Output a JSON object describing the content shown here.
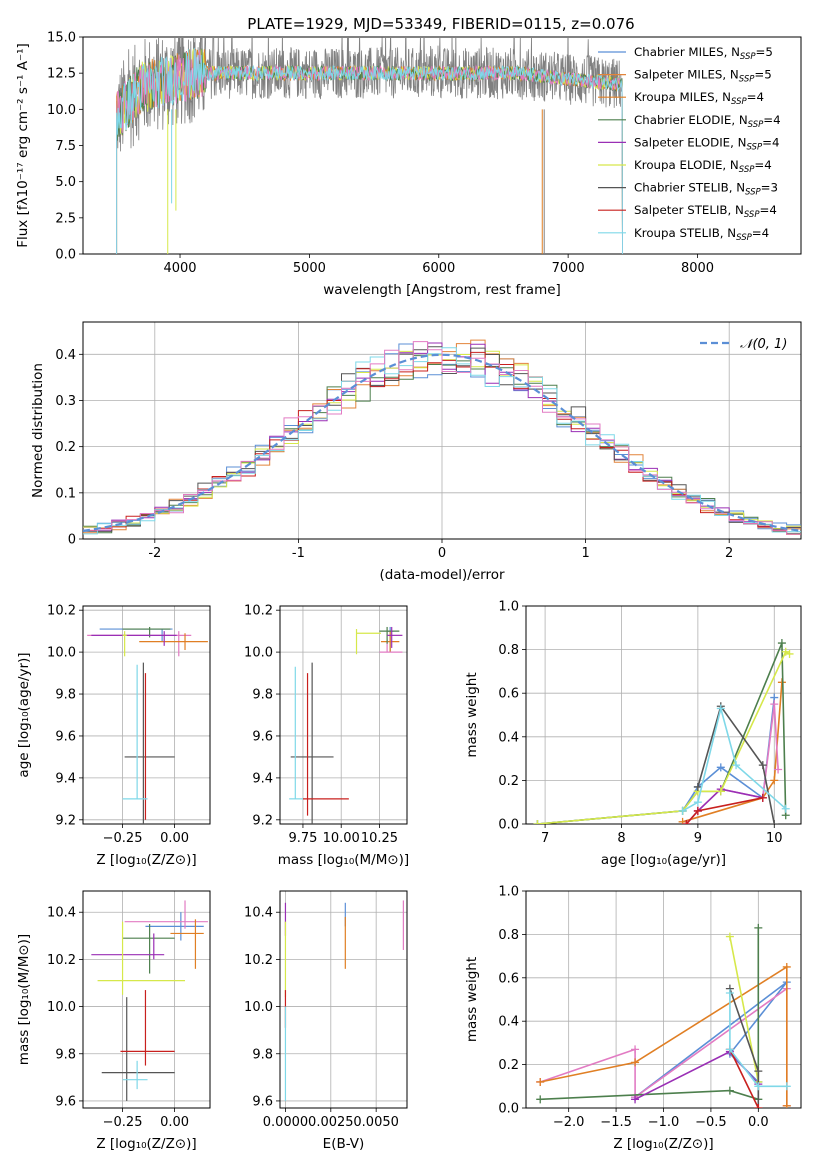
{
  "figure_title": "PLATE=1929, MJD=53349, FIBERID=0115, z=0.076",
  "colors": {
    "Chabrier MILES": "#5B8FD6",
    "Salpeter MILES": "#E2843A",
    "Kroupa MILES": "#E07F24",
    "Chabrier ELODIE": "#4D7F4D",
    "Salpeter ELODIE": "#9A2FB5",
    "Kroupa ELODIE": "#D6E84A",
    "Chabrier STELIB": "#555555",
    "Salpeter STELIB": "#C8201E",
    "Kroupa STELIB": "#7FD8E8",
    "pink": "#E27BC3",
    "gaussian": "#5B8FD6"
  },
  "chart_data": [
    {
      "id": "spectrum",
      "type": "line",
      "xlabel": "wavelength [Angstrom, rest frame]",
      "ylabel": "Flux [fλ10⁻¹⁷ erg cm⁻² s⁻¹ A⁻¹]",
      "xlim": [
        3250,
        8800
      ],
      "ylim": [
        0,
        15
      ],
      "xticks": [
        "4000",
        "5000",
        "6000",
        "7000",
        "8000"
      ],
      "yticks": [
        "0.0",
        "2.5",
        "5.0",
        "7.5",
        "10.0",
        "12.5",
        "15.0"
      ],
      "data_range": [
        3510,
        7420
      ],
      "legend_position": "upper right",
      "legend": [
        {
          "label": "Chabrier MILES, N",
          "sub": "SSP",
          "value": "=5",
          "color": "#5B8FD6"
        },
        {
          "label": "Salpeter MILES, N",
          "sub": "SSP",
          "value": "=5",
          "color": "#E2843A"
        },
        {
          "label": "Kroupa MILES, N",
          "sub": "SSP",
          "value": "=4",
          "color": "#E07F24"
        },
        {
          "label": "Chabrier ELODIE, N",
          "sub": "SSP",
          "value": "=4",
          "color": "#4D7F4D"
        },
        {
          "label": "Salpeter ELODIE, N",
          "sub": "SSP",
          "value": "=4",
          "color": "#9A2FB5"
        },
        {
          "label": "Kroupa ELODIE, N",
          "sub": "SSP",
          "value": "=4",
          "color": "#D6E84A"
        },
        {
          "label": "Chabrier STELIB, N",
          "sub": "SSP",
          "value": "=3",
          "color": "#555555"
        },
        {
          "label": "Salpeter STELIB, N",
          "sub": "SSP",
          "value": "=4",
          "color": "#C8201E"
        },
        {
          "label": "Kroupa STELIB, N",
          "sub": "SSP",
          "value": "=4",
          "color": "#7FD8E8"
        }
      ]
    },
    {
      "id": "residuals",
      "type": "histogram",
      "xlabel": "(data-model)/error",
      "ylabel": "Normed distribution",
      "xlim": [
        -2.5,
        2.5
      ],
      "ylim": [
        0,
        0.47
      ],
      "xticks": [
        -2,
        -1,
        0,
        1,
        2
      ],
      "yticks": [
        0.0,
        0.1,
        0.2,
        0.3,
        0.4
      ],
      "grid": true,
      "legend_position": "upper right",
      "legend": [
        {
          "label": "𝒩(0, 1)",
          "style": "dashed",
          "color": "#5B8FD6"
        }
      ],
      "bin_width": 0.1,
      "bin_start": -2.5
    },
    {
      "id": "age_vs_Z",
      "type": "errorbar",
      "xlabel": "Z [log₁₀(Z/Z⊙)]",
      "ylabel": "age  [log₁₀(age/yr)]",
      "xlim": [
        -0.44,
        0.17
      ],
      "ylim": [
        9.18,
        10.22
      ],
      "xticks": [
        "−0.25",
        "0.00"
      ],
      "yticks": [
        "9.2",
        "9.4",
        "9.6",
        "9.8",
        "10.0",
        "10.2"
      ],
      "grid": true,
      "points": [
        {
          "x": -0.06,
          "y": 10.11,
          "xerr": [
            0.3,
            0.05
          ],
          "yerr": [
            0.06,
            0.0
          ],
          "color": "#5B8FD6"
        },
        {
          "x": 0.02,
          "y": 10.08,
          "xerr": [
            0.44,
            0.06
          ],
          "yerr": [
            0.1,
            0.02
          ],
          "color": "#E27BC3"
        },
        {
          "x": 0.05,
          "y": 10.05,
          "xerr": [
            0.22,
            0.11
          ],
          "yerr": [
            0.04,
            0.04
          ],
          "color": "#E07F24"
        },
        {
          "x": -0.12,
          "y": 10.11,
          "xerr": [
            0.13,
            0.1
          ],
          "yerr": [
            0.04,
            0.01
          ],
          "color": "#4D7F4D"
        },
        {
          "x": -0.05,
          "y": 10.08,
          "xerr": [
            0.35,
            0.06
          ],
          "yerr": [
            0.05,
            0.02
          ],
          "color": "#9A2FB5"
        },
        {
          "x": -0.24,
          "y": 10.08,
          "xerr": [
            0.01,
            0.01
          ],
          "yerr": [
            0.1,
            0.02
          ],
          "color": "#D6E84A"
        },
        {
          "x": -0.15,
          "y": 9.5,
          "xerr": [
            0.09,
            0.15
          ],
          "yerr": [
            0.45,
            0.45
          ],
          "color": "#555555"
        },
        {
          "x": -0.14,
          "y": 9.28,
          "xerr": [
            0.0,
            0.0
          ],
          "yerr": [
            0.08,
            0.62
          ],
          "color": "#C8201E"
        },
        {
          "x": -0.18,
          "y": 9.3,
          "xerr": [
            0.07,
            0.05
          ],
          "yerr": [
            0.0,
            0.64
          ],
          "color": "#7FD8E8"
        }
      ]
    },
    {
      "id": "age_vs_mass",
      "type": "errorbar",
      "xlabel": "mass [log₁₀(M/M⊙)]",
      "ylabel": "",
      "xlim": [
        9.6,
        10.43
      ],
      "ylim": [
        9.18,
        10.22
      ],
      "xticks": [
        "9.75",
        "10.00",
        "10.25"
      ],
      "yticks": [
        "9.2",
        "9.4",
        "9.6",
        "9.8",
        "10.0",
        "10.2"
      ],
      "grid": true,
      "points": [
        {
          "x": 10.32,
          "y": 10.1,
          "xerr": [
            0.02,
            0.02
          ],
          "yerr": [
            0.1,
            0.02
          ],
          "color": "#5B8FD6"
        },
        {
          "x": 10.32,
          "y": 10.05,
          "xerr": [
            0.06,
            0.06
          ],
          "yerr": [
            0.05,
            0.05
          ],
          "color": "#E07F24"
        },
        {
          "x": 10.3,
          "y": 10.0,
          "xerr": [
            0.05,
            0.1
          ],
          "yerr": [
            0.0,
            0.06
          ],
          "color": "#E27BC3"
        },
        {
          "x": 10.3,
          "y": 10.1,
          "xerr": [
            0.05,
            0.08
          ],
          "yerr": [
            0.06,
            0.02
          ],
          "color": "#4D7F4D"
        },
        {
          "x": 10.33,
          "y": 10.08,
          "xerr": [
            0.03,
            0.07
          ],
          "yerr": [
            0.06,
            0.04
          ],
          "color": "#9A2FB5"
        },
        {
          "x": 10.1,
          "y": 10.09,
          "xerr": [
            0.0,
            0.16
          ],
          "yerr": [
            0.1,
            0.02
          ],
          "color": "#D6E84A"
        },
        {
          "x": 9.81,
          "y": 9.5,
          "xerr": [
            0.14,
            0.14
          ],
          "yerr": [
            0.45,
            0.45
          ],
          "color": "#555555"
        },
        {
          "x": 9.78,
          "y": 9.3,
          "xerr": [
            0.03,
            0.27
          ],
          "yerr": [
            0.08,
            0.6
          ],
          "color": "#C8201E"
        },
        {
          "x": 9.7,
          "y": 9.3,
          "xerr": [
            0.04,
            0.05
          ],
          "yerr": [
            0.0,
            0.63
          ],
          "color": "#7FD8E8"
        }
      ]
    },
    {
      "id": "massweight_vs_age",
      "type": "line",
      "xlabel": "age  [log₁₀(age/yr)]",
      "ylabel": "mass weight",
      "xlim": [
        6.75,
        10.35
      ],
      "ylim": [
        0,
        1.0
      ],
      "xticks": [
        7,
        8,
        9,
        10
      ],
      "yticks": [
        "0.0",
        "0.2",
        "0.4",
        "0.6",
        "0.8",
        "1.0"
      ],
      "grid": true,
      "series": [
        {
          "color": "#5B8FD6",
          "x": [
            6.9,
            8.8,
            9.0,
            9.3,
            9.85,
            10.0
          ],
          "y": [
            0.0,
            0.06,
            0.17,
            0.26,
            0.12,
            0.58
          ]
        },
        {
          "color": "#E07F24",
          "x": [
            8.8,
            9.85,
            10.0,
            10.1
          ],
          "y": [
            0.01,
            0.12,
            0.2,
            0.65
          ]
        },
        {
          "color": "#E27BC3",
          "x": [
            8.85,
            9.0,
            9.3,
            9.85,
            10.0,
            10.05
          ],
          "y": [
            0.0,
            0.06,
            0.16,
            0.12,
            0.55,
            0.25
          ]
        },
        {
          "color": "#4D7F4D",
          "x": [
            6.9,
            8.8,
            9.0,
            9.3,
            10.1,
            10.15
          ],
          "y": [
            0.0,
            0.06,
            0.15,
            0.15,
            0.83,
            0.04
          ]
        },
        {
          "color": "#9A2FB5",
          "x": [
            8.85,
            9.0,
            9.3,
            9.85
          ],
          "y": [
            0.0,
            0.06,
            0.16,
            0.12
          ]
        },
        {
          "color": "#D6E84A",
          "x": [
            6.9,
            8.8,
            9.0,
            9.3,
            10.15,
            10.2
          ],
          "y": [
            0.0,
            0.06,
            0.15,
            0.15,
            0.79,
            0.78
          ]
        },
        {
          "color": "#555555",
          "x": [
            9.0,
            9.3,
            9.85,
            10.0
          ],
          "y": [
            0.17,
            0.54,
            0.27,
            0.0
          ]
        },
        {
          "color": "#C8201E",
          "x": [
            8.85,
            9.0,
            9.85
          ],
          "y": [
            0.0,
            0.06,
            0.12
          ]
        },
        {
          "color": "#7FD8E8",
          "x": [
            8.8,
            9.0,
            9.3,
            9.5,
            10.15
          ],
          "y": [
            0.06,
            0.1,
            0.53,
            0.27,
            0.07
          ]
        }
      ]
    },
    {
      "id": "mass_vs_Z",
      "type": "errorbar",
      "xlabel": "Z [log₁₀(Z/Z⊙)]",
      "ylabel": "mass [log₁₀(M/M⊙)]",
      "xlim": [
        -0.44,
        0.17
      ],
      "ylim": [
        9.57,
        10.49
      ],
      "xticks": [
        "−0.25",
        "0.00"
      ],
      "yticks": [
        "9.6",
        "9.8",
        "10.0",
        "10.2",
        "10.4"
      ],
      "grid": true,
      "points": [
        {
          "x": 0.03,
          "y": 10.34,
          "xerr": [
            0.17,
            0.11
          ],
          "yerr": [
            0.06,
            0.06
          ],
          "color": "#5B8FD6"
        },
        {
          "x": 0.05,
          "y": 10.36,
          "xerr": [
            0.29,
            0.11
          ],
          "yerr": [
            0.03,
            0.09
          ],
          "color": "#E27BC3"
        },
        {
          "x": 0.1,
          "y": 10.31,
          "xerr": [
            0.12,
            0.04
          ],
          "yerr": [
            0.15,
            0.06
          ],
          "color": "#E07F24"
        },
        {
          "x": -0.12,
          "y": 10.29,
          "xerr": [
            0.13,
            0.12
          ],
          "yerr": [
            0.15,
            0.06
          ],
          "color": "#4D7F4D"
        },
        {
          "x": -0.1,
          "y": 10.22,
          "xerr": [
            0.3,
            0.05
          ],
          "yerr": [
            0.02,
            0.09
          ],
          "color": "#9A2FB5"
        },
        {
          "x": -0.25,
          "y": 10.11,
          "xerr": [
            0.12,
            0.3
          ],
          "yerr": [
            0.06,
            0.25
          ],
          "color": "#D6E84A"
        },
        {
          "x": -0.23,
          "y": 9.72,
          "xerr": [
            0.12,
            0.23
          ],
          "yerr": [
            0.12,
            0.32
          ],
          "color": "#555555"
        },
        {
          "x": -0.14,
          "y": 9.81,
          "xerr": [
            0.12,
            0.14
          ],
          "yerr": [
            0.06,
            0.26
          ],
          "color": "#C8201E"
        },
        {
          "x": -0.18,
          "y": 9.69,
          "xerr": [
            0.07,
            0.05
          ],
          "yerr": [
            0.04,
            0.08
          ],
          "color": "#7FD8E8"
        }
      ]
    },
    {
      "id": "mass_vs_ebv",
      "type": "errorbar",
      "xlabel": "E(B-V)",
      "ylabel": "",
      "xlim": [
        -0.0003,
        0.0067
      ],
      "ylim": [
        9.57,
        10.49
      ],
      "xticks": [
        "0.0000",
        "0.0025",
        "0.0050"
      ],
      "yticks": [
        "9.6",
        "9.8",
        "10.0",
        "10.2",
        "10.4"
      ],
      "grid": true,
      "points": [
        {
          "x": 0.0033,
          "y": 10.38,
          "xerr": [
            0,
            0
          ],
          "yerr": [
            0.04,
            0.06
          ],
          "color": "#5B8FD6"
        },
        {
          "x": 0.0033,
          "y": 10.28,
          "xerr": [
            0,
            0
          ],
          "yerr": [
            0.12,
            0.1
          ],
          "color": "#E07F24"
        },
        {
          "x": 0.0065,
          "y": 10.33,
          "xerr": [
            0,
            0
          ],
          "yerr": [
            0.09,
            0.12
          ],
          "color": "#E27BC3"
        },
        {
          "x": 0.0,
          "y": 10.35,
          "xerr": [
            0,
            0
          ],
          "yerr": [
            0.05,
            0.09
          ],
          "color": "#9A2FB5"
        },
        {
          "x": 0.0,
          "y": 10.2,
          "xerr": [
            0,
            0
          ],
          "yerr": [
            0.16,
            0.16
          ],
          "color": "#D6E84A"
        },
        {
          "x": 0.0,
          "y": 9.99,
          "xerr": [
            0,
            0
          ],
          "yerr": [
            0.08,
            0.08
          ],
          "color": "#C8201E"
        },
        {
          "x": 0.0,
          "y": 9.8,
          "xerr": [
            0,
            0
          ],
          "yerr": [
            0.2,
            0.2
          ],
          "color": "#7FD8E8"
        }
      ]
    },
    {
      "id": "massweight_vs_Z",
      "type": "line",
      "xlabel": "Z [log₁₀(Z/Z⊙)]",
      "ylabel": "mass weight",
      "xlim": [
        -2.45,
        0.45
      ],
      "ylim": [
        0,
        1.0
      ],
      "xticks": [
        "−2.0",
        "−1.5",
        "−1.0",
        "−0.5",
        "0.0"
      ],
      "yticks": [
        "0.0",
        "0.2",
        "0.4",
        "0.6",
        "0.8",
        "1.0"
      ],
      "grid": true,
      "series": [
        {
          "color": "#5B8FD6",
          "x": [
            -1.3,
            0.3,
            -0.3,
            0.0
          ],
          "y": [
            0.05,
            0.58,
            0.25,
            0.12
          ]
        },
        {
          "color": "#E27BC3",
          "x": [
            -2.3,
            -1.3,
            -1.3,
            0.3,
            0.3
          ],
          "y": [
            0.12,
            0.27,
            0.05,
            0.55,
            0.01
          ]
        },
        {
          "color": "#E07F24",
          "x": [
            -2.3,
            -1.3,
            0.3,
            0.3
          ],
          "y": [
            0.12,
            0.21,
            0.65,
            0.01
          ]
        },
        {
          "color": "#4D7F4D",
          "x": [
            -2.3,
            -0.3,
            0.0,
            0.0
          ],
          "y": [
            0.04,
            0.08,
            0.04,
            0.83
          ]
        },
        {
          "color": "#9A2FB5",
          "x": [
            -1.3,
            -0.3,
            0.0
          ],
          "y": [
            0.04,
            0.26,
            0.11
          ]
        },
        {
          "color": "#D6E84A",
          "x": [
            -0.3,
            0.0
          ],
          "y": [
            0.79,
            0.12
          ]
        },
        {
          "color": "#555555",
          "x": [
            -0.3,
            0.0,
            0.0
          ],
          "y": [
            0.55,
            0.17,
            0.0
          ]
        },
        {
          "color": "#C8201E",
          "x": [
            -0.3,
            0.0
          ],
          "y": [
            0.27,
            0.0
          ]
        },
        {
          "color": "#7FD8E8",
          "x": [
            -0.3,
            -0.3,
            0.0,
            0.3
          ],
          "y": [
            0.53,
            0.27,
            0.1,
            0.1
          ]
        }
      ]
    }
  ]
}
